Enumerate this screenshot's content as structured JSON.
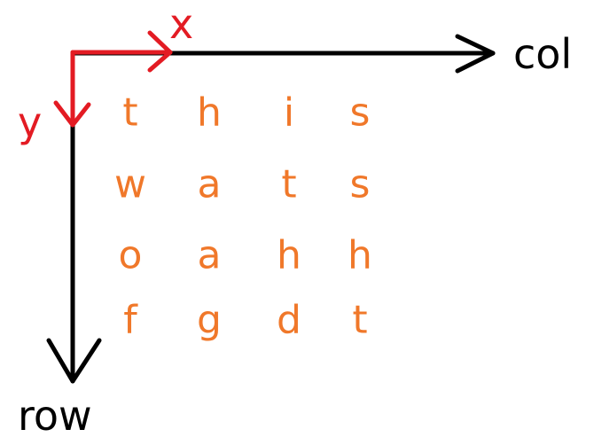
{
  "colors": {
    "axis": "#000000",
    "direction": "#e31b23",
    "grid_letters": "#f0782a"
  },
  "labels": {
    "col": "col",
    "row": "row",
    "x": "x",
    "y": "y"
  },
  "grid": {
    "rows": [
      [
        "t",
        "h",
        "i",
        "s"
      ],
      [
        "w",
        "a",
        "t",
        "s"
      ],
      [
        "o",
        "a",
        "h",
        "h"
      ],
      [
        "f",
        "g",
        "d",
        "t"
      ]
    ]
  }
}
